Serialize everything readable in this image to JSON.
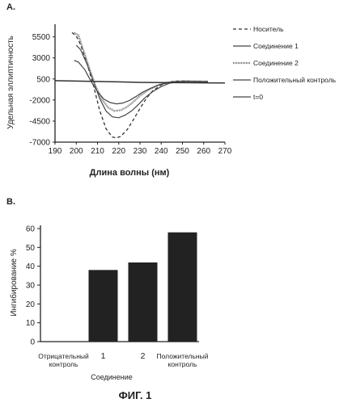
{
  "figure_label": "ФИГ. 1",
  "chart_data": [
    {
      "type": "line",
      "panel_label": "A.",
      "xlabel": "Длина волны (нм)",
      "ylabel": "Удельная эллиптичность",
      "xlim": [
        190,
        270
      ],
      "ylim": [
        -7000,
        7000
      ],
      "x_ticks": [
        190,
        200,
        210,
        220,
        230,
        240,
        250,
        260,
        270
      ],
      "y_ticks": [
        5500,
        3000,
        500,
        -2000,
        -4500,
        -7000
      ],
      "grid": false,
      "legend_position": "right",
      "series": [
        {
          "name": "Носитель",
          "style": "dashed",
          "x": [
            198,
            200,
            202,
            205,
            208,
            211,
            214,
            217,
            219,
            221,
            224,
            227,
            230,
            233,
            236,
            240,
            244,
            248,
            252,
            256,
            262
          ],
          "y": [
            6000,
            5600,
            4600,
            2400,
            -200,
            -3200,
            -5400,
            -6400,
            -6500,
            -6300,
            -5500,
            -4300,
            -3000,
            -1800,
            -900,
            -200,
            150,
            250,
            250,
            220,
            200
          ]
        },
        {
          "name": "Соединение 1",
          "style": "solid",
          "x": [
            200,
            202,
            205,
            208,
            211,
            214,
            217,
            220,
            223,
            226,
            229,
            232,
            236,
            240,
            244,
            248,
            252,
            256,
            262
          ],
          "y": [
            4500,
            4000,
            2300,
            300,
            -1800,
            -3300,
            -4000,
            -4100,
            -3800,
            -3300,
            -2600,
            -1800,
            -1000,
            -400,
            0,
            150,
            200,
            200,
            180
          ]
        },
        {
          "name": "Соединение 2",
          "style": "hatched",
          "x": [
            199,
            201,
            203,
            206,
            209,
            212,
            215,
            218,
            221,
            224,
            227,
            230,
            234,
            238,
            242,
            246,
            250,
            256,
            262
          ],
          "y": [
            6000,
            5700,
            4200,
            1900,
            -300,
            -1900,
            -2900,
            -3300,
            -3200,
            -2800,
            -2200,
            -1500,
            -800,
            -300,
            50,
            200,
            250,
            220,
            200
          ]
        },
        {
          "name": "Положительный контроль",
          "style": "solid",
          "x": [
            199,
            201,
            204,
            207,
            210,
            213,
            216,
            219,
            222,
            225,
            228,
            231,
            235,
            239,
            243,
            247,
            251,
            256,
            262
          ],
          "y": [
            2700,
            2500,
            1600,
            200,
            -1000,
            -1900,
            -2300,
            -2450,
            -2350,
            -2050,
            -1600,
            -1100,
            -600,
            -200,
            50,
            150,
            200,
            180,
            150
          ]
        },
        {
          "name": "t=0",
          "style": "solid",
          "x": [
            190,
            200,
            210,
            220,
            230,
            240,
            250,
            260,
            270
          ],
          "y": [
            300,
            250,
            200,
            150,
            100,
            80,
            60,
            40,
            30
          ]
        }
      ]
    },
    {
      "type": "bar",
      "panel_label": "B.",
      "ylabel": "Ингибирование %",
      "xlabel": "Соединение",
      "categories": [
        "Отрицательный контроль",
        "1",
        "2",
        "Положительный контроль"
      ],
      "category_label_lines": [
        [
          "Отрицательный",
          "контроль"
        ],
        [
          "1"
        ],
        [
          "2"
        ],
        [
          "Положительный",
          "контроль"
        ]
      ],
      "values": [
        0,
        38,
        42,
        58
      ],
      "ylim": [
        0,
        60
      ],
      "y_ticks": [
        0,
        10,
        20,
        30,
        40,
        50,
        60
      ],
      "grid": false,
      "bar_color": "#222222"
    }
  ]
}
